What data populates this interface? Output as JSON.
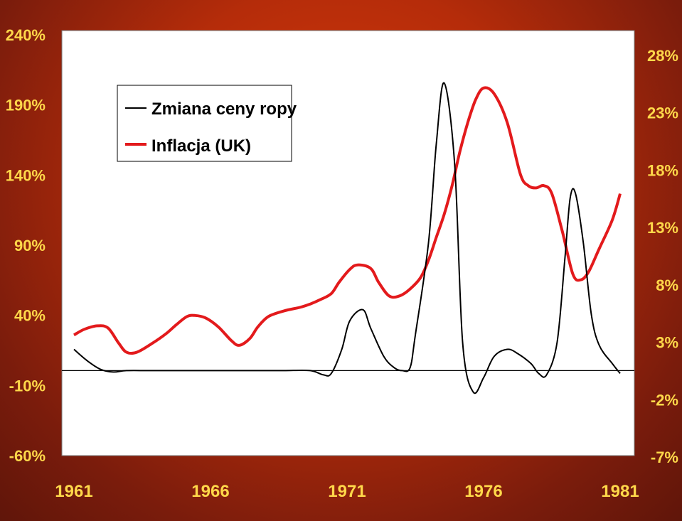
{
  "chart_data": {
    "type": "line",
    "title": "",
    "xlabel": "",
    "ylabel": "",
    "x_ticks": [
      "1961",
      "1966",
      "1971",
      "1976",
      "1981"
    ],
    "xlim": [
      1961,
      1981.8
    ],
    "y_left": {
      "ticks": [
        "240%",
        "190%",
        "140%",
        "90%",
        "40%",
        "-10%",
        "-60%"
      ],
      "ylim": [
        -60,
        240
      ]
    },
    "y_right": {
      "ticks": [
        "28%",
        "23%",
        "18%",
        "13%",
        "8%",
        "3%",
        "-2%",
        "-7%"
      ],
      "ylim": [
        -7,
        30
      ]
    },
    "zero_line_left": 0,
    "grid": false,
    "legend_position": "top-left",
    "series": [
      {
        "name": "Zmiana ceny ropy",
        "color": "#000000",
        "axis": "left",
        "x": [
          1961.0,
          1961.5,
          1962.0,
          1962.5,
          1963.0,
          1964.0,
          1966.0,
          1968.0,
          1969.0,
          1970.0,
          1970.5,
          1970.8,
          1971.2,
          1971.5,
          1972.0,
          1972.3,
          1972.8,
          1973.2,
          1973.5,
          1973.8,
          1974.0,
          1974.5,
          1974.8,
          1975.1,
          1975.5,
          1975.8,
          1976.2,
          1976.6,
          1977.0,
          1977.5,
          1977.9,
          1978.4,
          1978.7,
          1979.0,
          1979.4,
          1979.7,
          1979.9,
          1980.1,
          1980.4,
          1980.7,
          1981.0,
          1981.5,
          1981.8
        ],
        "y": [
          15,
          7,
          1,
          -1,
          0,
          0,
          0,
          0,
          0,
          0,
          -3,
          -2,
          15,
          35,
          43,
          30,
          10,
          2,
          0,
          2,
          25,
          90,
          160,
          203,
          145,
          20,
          -15,
          -5,
          10,
          15,
          12,
          5,
          -2,
          -3,
          20,
          80,
          122,
          125,
          90,
          40,
          18,
          5,
          -2
        ]
      },
      {
        "name": "Inflacja (UK)",
        "color": "#e31a1c",
        "axis": "right",
        "x": [
          1961.0,
          1961.4,
          1961.9,
          1962.3,
          1962.7,
          1963.0,
          1963.4,
          1964.0,
          1964.5,
          1964.9,
          1965.3,
          1965.6,
          1966.0,
          1966.5,
          1967.0,
          1967.3,
          1967.7,
          1968.0,
          1968.4,
          1969.0,
          1969.6,
          1970.0,
          1970.4,
          1970.8,
          1971.1,
          1971.5,
          1971.8,
          1972.3,
          1972.6,
          1973.0,
          1973.4,
          1973.8,
          1974.2,
          1974.5,
          1974.8,
          1975.1,
          1975.4,
          1975.7,
          1976.0,
          1976.3,
          1976.6,
          1977.0,
          1977.5,
          1978.0,
          1978.3,
          1978.6,
          1978.9,
          1979.2,
          1979.6,
          1980.0,
          1980.3,
          1980.6,
          1981.0,
          1981.5,
          1981.8
        ],
        "y": [
          3.5,
          4.0,
          4.3,
          4.1,
          2.8,
          2.0,
          2.0,
          2.8,
          3.6,
          4.4,
          5.1,
          5.2,
          5.0,
          4.2,
          3.0,
          2.6,
          3.2,
          4.2,
          5.1,
          5.6,
          5.9,
          6.2,
          6.6,
          7.1,
          8.1,
          9.2,
          9.6,
          9.3,
          8.1,
          6.9,
          6.9,
          7.5,
          8.5,
          10.0,
          12.0,
          14.0,
          16.5,
          19.5,
          22.0,
          24.0,
          25.0,
          24.5,
          22.0,
          17.5,
          16.5,
          16.3,
          16.5,
          15.8,
          12.5,
          8.8,
          8.3,
          9.0,
          11.0,
          13.5,
          15.8
        ]
      }
    ]
  }
}
